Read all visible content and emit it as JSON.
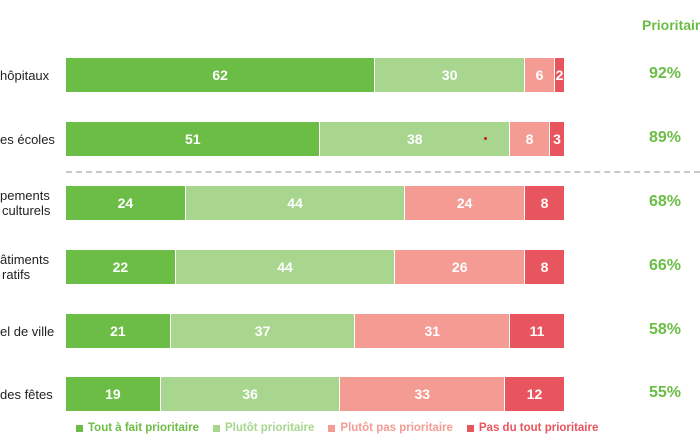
{
  "header_label": "Prioritaire",
  "colors": {
    "tout_a_fait": "#6cbd45",
    "plutot": "#a8d68f",
    "plutot_pas": "#f49b94",
    "pas_du_tout": "#e8555e",
    "pct_text": "#6cbd45"
  },
  "chart_data": {
    "type": "bar",
    "orientation": "horizontal",
    "stacked": true,
    "categories": [
      [
        "hôpitaux"
      ],
      [
        "es écoles"
      ],
      [
        "pements",
        "culturels"
      ],
      [
        "âtiments",
        "ratifs"
      ],
      [
        "el de ville"
      ],
      [
        "des fêtes"
      ]
    ],
    "series": [
      {
        "name": "Tout à fait prioritaire",
        "values": [
          62,
          51,
          24,
          22,
          21,
          19
        ]
      },
      {
        "name": "Plutôt prioritaire",
        "values": [
          30,
          38,
          44,
          44,
          37,
          36
        ]
      },
      {
        "name": "Plutôt pas prioritaire",
        "values": [
          6,
          8,
          24,
          26,
          31,
          33
        ]
      },
      {
        "name": "Pas du tout prioritaire",
        "values": [
          2,
          3,
          8,
          8,
          11,
          12
        ]
      }
    ],
    "prioritaire_totals": [
      "92%",
      "89%",
      "68%",
      "66%",
      "58%",
      "55%"
    ],
    "xlim": [
      0,
      100
    ],
    "legend_position": "bottom",
    "grid": false
  }
}
